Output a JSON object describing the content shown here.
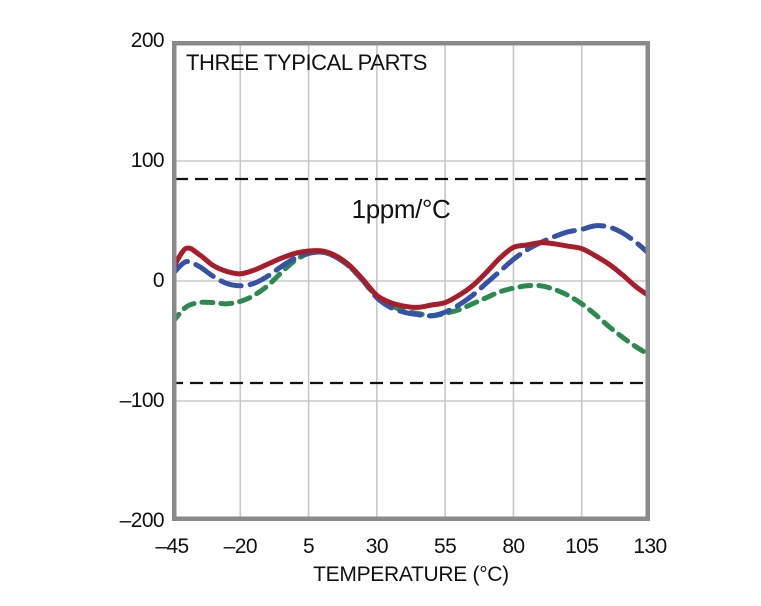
{
  "title": "THREE TYPICAL PARTS",
  "annotation": "1ppm/°C",
  "axes": {
    "x_label": "TEMPERATURE (°C)",
    "x_tick_labels": [
      "–45",
      "–20",
      "5",
      "30",
      "55",
      "80",
      "105",
      "130"
    ],
    "y_tick_labels": [
      "200",
      "100",
      "0",
      "–100",
      "–200"
    ]
  },
  "colors": {
    "frame": "#8a8a8a",
    "grid": "#c8c8c8",
    "band": "#111111",
    "text": "#111111",
    "part1": "#a81d2a",
    "part2": "#3453a6",
    "part3": "#2d8a4e"
  },
  "chart_data": {
    "type": "line",
    "title": "THREE TYPICAL PARTS",
    "xlabel": "TEMPERATURE (°C)",
    "ylabel": "",
    "xlim": [
      -45,
      130
    ],
    "ylim": [
      -200,
      200
    ],
    "x_ticks": [
      -45,
      -20,
      5,
      30,
      55,
      80,
      105,
      130
    ],
    "y_ticks": [
      -200,
      -100,
      0,
      100,
      200
    ],
    "grid": true,
    "legend": "none",
    "annotations": [
      {
        "text": "1ppm/°C",
        "x": 40,
        "y": 62
      }
    ],
    "band": {
      "label": "1ppm/°C",
      "y_top": 85,
      "y_bottom": -85,
      "x_start": -45,
      "x_end": 130,
      "style": "black-dashed"
    },
    "x": [
      -45,
      -40,
      -35,
      -30,
      -25,
      -20,
      -15,
      -10,
      -5,
      0,
      5,
      10,
      15,
      20,
      25,
      30,
      35,
      40,
      45,
      50,
      55,
      60,
      65,
      70,
      75,
      80,
      85,
      90,
      95,
      100,
      105,
      110,
      115,
      120,
      125,
      130
    ],
    "series": [
      {
        "name": "part-1",
        "style": "solid",
        "color": "#a81d2a",
        "values": [
          9,
          27,
          22,
          13,
          8,
          6,
          9,
          14,
          19,
          23,
          25,
          25,
          21,
          13,
          1,
          -12,
          -18,
          -21,
          -22,
          -20,
          -18,
          -12,
          -4,
          7,
          19,
          28,
          30,
          32,
          31,
          29,
          27,
          21,
          14,
          5,
          -5,
          -13
        ]
      },
      {
        "name": "part-2",
        "style": "long-dash",
        "color": "#3453a6",
        "values": [
          5,
          16,
          12,
          4,
          -2,
          -4,
          -2,
          4,
          12,
          19,
          23,
          24,
          20,
          12,
          0,
          -14,
          -22,
          -26,
          -28,
          -29,
          -26,
          -20,
          -12,
          -2,
          8,
          18,
          26,
          32,
          37,
          41,
          43,
          46,
          45,
          40,
          32,
          22
        ]
      },
      {
        "name": "part-3",
        "style": "short-dash",
        "color": "#2d8a4e",
        "values": [
          -35,
          -22,
          -18,
          -18,
          -19,
          -17,
          -12,
          -4,
          7,
          17,
          23,
          24,
          20,
          12,
          0,
          -13,
          -20,
          -25,
          -27,
          -29,
          -27,
          -24,
          -19,
          -14,
          -9,
          -6,
          -4,
          -4,
          -7,
          -12,
          -19,
          -28,
          -38,
          -47,
          -55,
          -62
        ]
      }
    ]
  }
}
